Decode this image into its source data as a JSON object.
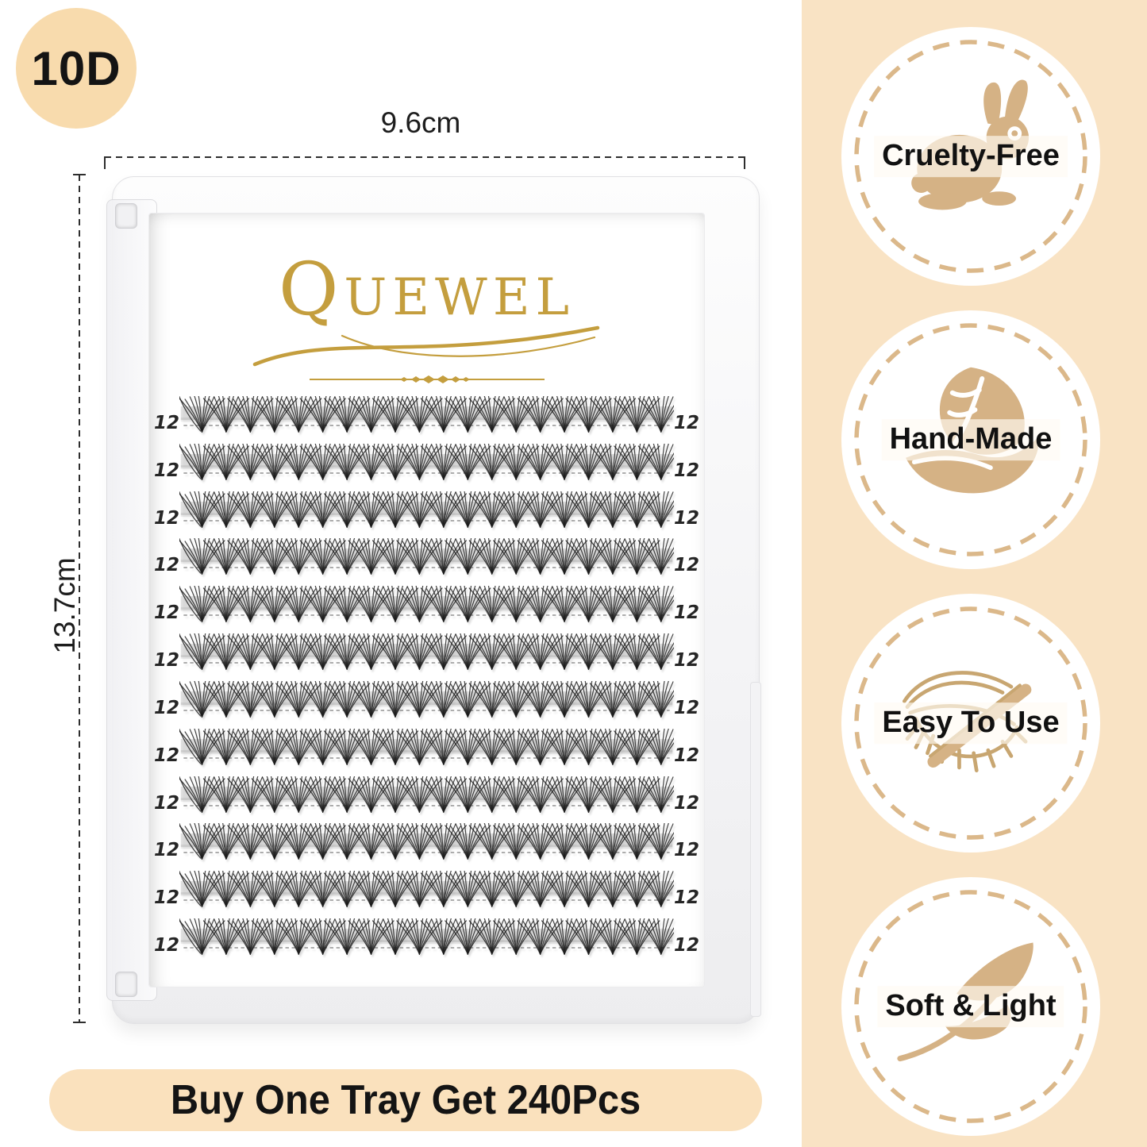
{
  "product_badge": {
    "label": "10D"
  },
  "measurements": {
    "width": "9.6cm",
    "height": "13.7cm"
  },
  "brand": {
    "logo_text": "QUEWEL"
  },
  "tray": {
    "row_label": "12",
    "row_count": 12,
    "clusters_per_row": 20
  },
  "features": [
    {
      "label": "Cruelty-Free",
      "icon": "rabbit-icon"
    },
    {
      "label": "Hand-Made",
      "icon": "hand-leaf-icon"
    },
    {
      "label": "Easy To Use",
      "icon": "eye-tweezers-icon"
    },
    {
      "label": "Soft & Light",
      "icon": "feather-icon"
    }
  ],
  "banner": {
    "label": "Buy One Tray Get 240Pcs"
  },
  "colors": {
    "band": "#F9E3C4",
    "badge_bg": "#F8DBAD",
    "banner_bg": "#FAE1BD",
    "gold": "#C49E3E",
    "tan_icon": "#D5B285",
    "tan_line": "#C8A671",
    "ring": "#DBB88A",
    "lash": "#1c1c1c"
  }
}
